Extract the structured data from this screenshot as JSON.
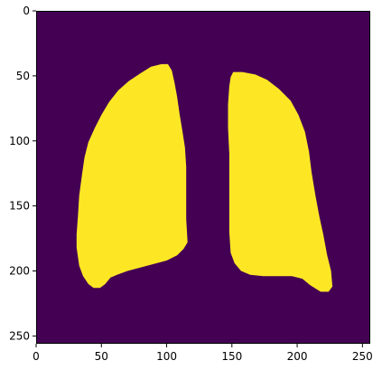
{
  "image": {
    "type": "heatmap",
    "content": "binary-lung-segmentation-mask",
    "colors": {
      "background": "#440154",
      "mask": "#fde725",
      "frame": "#000000"
    },
    "grid": false,
    "xlim": [
      0,
      256
    ],
    "ylim": [
      256,
      0
    ]
  },
  "axes": {
    "x_ticks": [
      {
        "value": 0,
        "label": "0"
      },
      {
        "value": 50,
        "label": "50"
      },
      {
        "value": 100,
        "label": "100"
      },
      {
        "value": 150,
        "label": "150"
      },
      {
        "value": 200,
        "label": "200"
      },
      {
        "value": 250,
        "label": "250"
      }
    ],
    "y_ticks": [
      {
        "value": 0,
        "label": "0"
      },
      {
        "value": 50,
        "label": "50"
      },
      {
        "value": 100,
        "label": "100"
      },
      {
        "value": 150,
        "label": "150"
      },
      {
        "value": 200,
        "label": "200"
      },
      {
        "value": 250,
        "label": "250"
      }
    ]
  },
  "regions": [
    {
      "name": "left-lung",
      "outline": [
        [
          101,
          41
        ],
        [
          96,
          41
        ],
        [
          88,
          43
        ],
        [
          80,
          48
        ],
        [
          71,
          54
        ],
        [
          63,
          61
        ],
        [
          56,
          70
        ],
        [
          50,
          80
        ],
        [
          45,
          90
        ],
        [
          40,
          101
        ],
        [
          37,
          113
        ],
        [
          35,
          127
        ],
        [
          33,
          142
        ],
        [
          32,
          158
        ],
        [
          31,
          172
        ],
        [
          31,
          182
        ],
        [
          33,
          196
        ],
        [
          36,
          204
        ],
        [
          40,
          210
        ],
        [
          44,
          213
        ],
        [
          49,
          213
        ],
        [
          53,
          210
        ],
        [
          57,
          205
        ],
        [
          62,
          203
        ],
        [
          70,
          200
        ],
        [
          85,
          196
        ],
        [
          100,
          192
        ],
        [
          108,
          188
        ],
        [
          113,
          183
        ],
        [
          116,
          178
        ],
        [
          115,
          160
        ],
        [
          115,
          140
        ],
        [
          115,
          120
        ],
        [
          114,
          105
        ],
        [
          112,
          92
        ],
        [
          110,
          80
        ],
        [
          108,
          66
        ],
        [
          106,
          55
        ],
        [
          104,
          46
        ]
      ]
    },
    {
      "name": "right-lung",
      "outline": [
        [
          151,
          47
        ],
        [
          158,
          47
        ],
        [
          168,
          49
        ],
        [
          177,
          53
        ],
        [
          186,
          60
        ],
        [
          195,
          69
        ],
        [
          201,
          80
        ],
        [
          206,
          93
        ],
        [
          209,
          108
        ],
        [
          211,
          124
        ],
        [
          214,
          142
        ],
        [
          217,
          158
        ],
        [
          220,
          172
        ],
        [
          223,
          188
        ],
        [
          226,
          200
        ],
        [
          227,
          212
        ],
        [
          224,
          216
        ],
        [
          218,
          216
        ],
        [
          210,
          211
        ],
        [
          204,
          206
        ],
        [
          196,
          204
        ],
        [
          186,
          204
        ],
        [
          174,
          204
        ],
        [
          164,
          203
        ],
        [
          157,
          200
        ],
        [
          152,
          194
        ],
        [
          149,
          186
        ],
        [
          148,
          170
        ],
        [
          148,
          150
        ],
        [
          148,
          130
        ],
        [
          148,
          110
        ],
        [
          147,
          90
        ],
        [
          147,
          72
        ],
        [
          148,
          58
        ],
        [
          149,
          51
        ]
      ]
    }
  ]
}
